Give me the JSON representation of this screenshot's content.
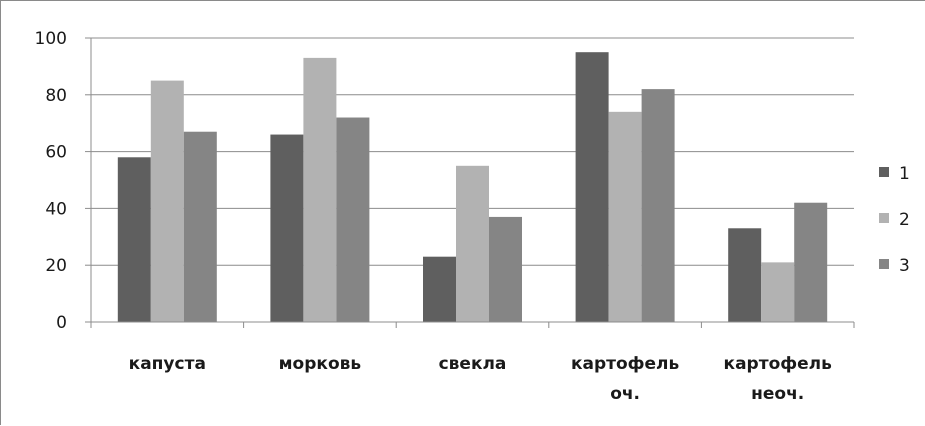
{
  "chart_data": {
    "type": "bar",
    "title": "",
    "xlabel": "",
    "ylabel": "",
    "categories": [
      "капуста",
      "морковь",
      "свекла",
      "картофель оч.",
      "картофель неоч."
    ],
    "category_lines": [
      [
        "капуста"
      ],
      [
        "морковь"
      ],
      [
        "свекла"
      ],
      [
        "картофель",
        "оч."
      ],
      [
        "картофель",
        "неоч."
      ]
    ],
    "series": [
      {
        "name": "1",
        "values": [
          58,
          66,
          23,
          95,
          33
        ],
        "color": "#5f5f5f"
      },
      {
        "name": "2",
        "values": [
          85,
          93,
          55,
          74,
          21
        ],
        "color": "#b2b2b2"
      },
      {
        "name": "3",
        "values": [
          67,
          72,
          37,
          82,
          42
        ],
        "color": "#858585"
      }
    ],
    "ylim": [
      0,
      100
    ],
    "yticks": [
      0,
      20,
      40,
      60,
      80,
      100
    ],
    "grid": true,
    "legend": "right"
  }
}
